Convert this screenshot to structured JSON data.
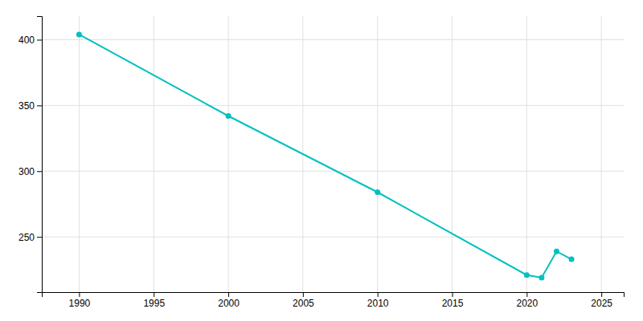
{
  "chart_data": {
    "type": "line",
    "x": [
      1990,
      2000,
      2010,
      2020,
      2021,
      2022,
      2023
    ],
    "values": [
      404,
      342,
      284,
      221,
      219,
      239,
      233
    ],
    "color": "#00C0C0",
    "marker": "circle",
    "xlim": [
      1987.5,
      2026.5
    ],
    "ylim": [
      208,
      418
    ],
    "xticks": [
      1990,
      1995,
      2000,
      2005,
      2010,
      2015,
      2020,
      2025
    ],
    "yticks": [
      250,
      300,
      350,
      400
    ],
    "grid": true
  }
}
